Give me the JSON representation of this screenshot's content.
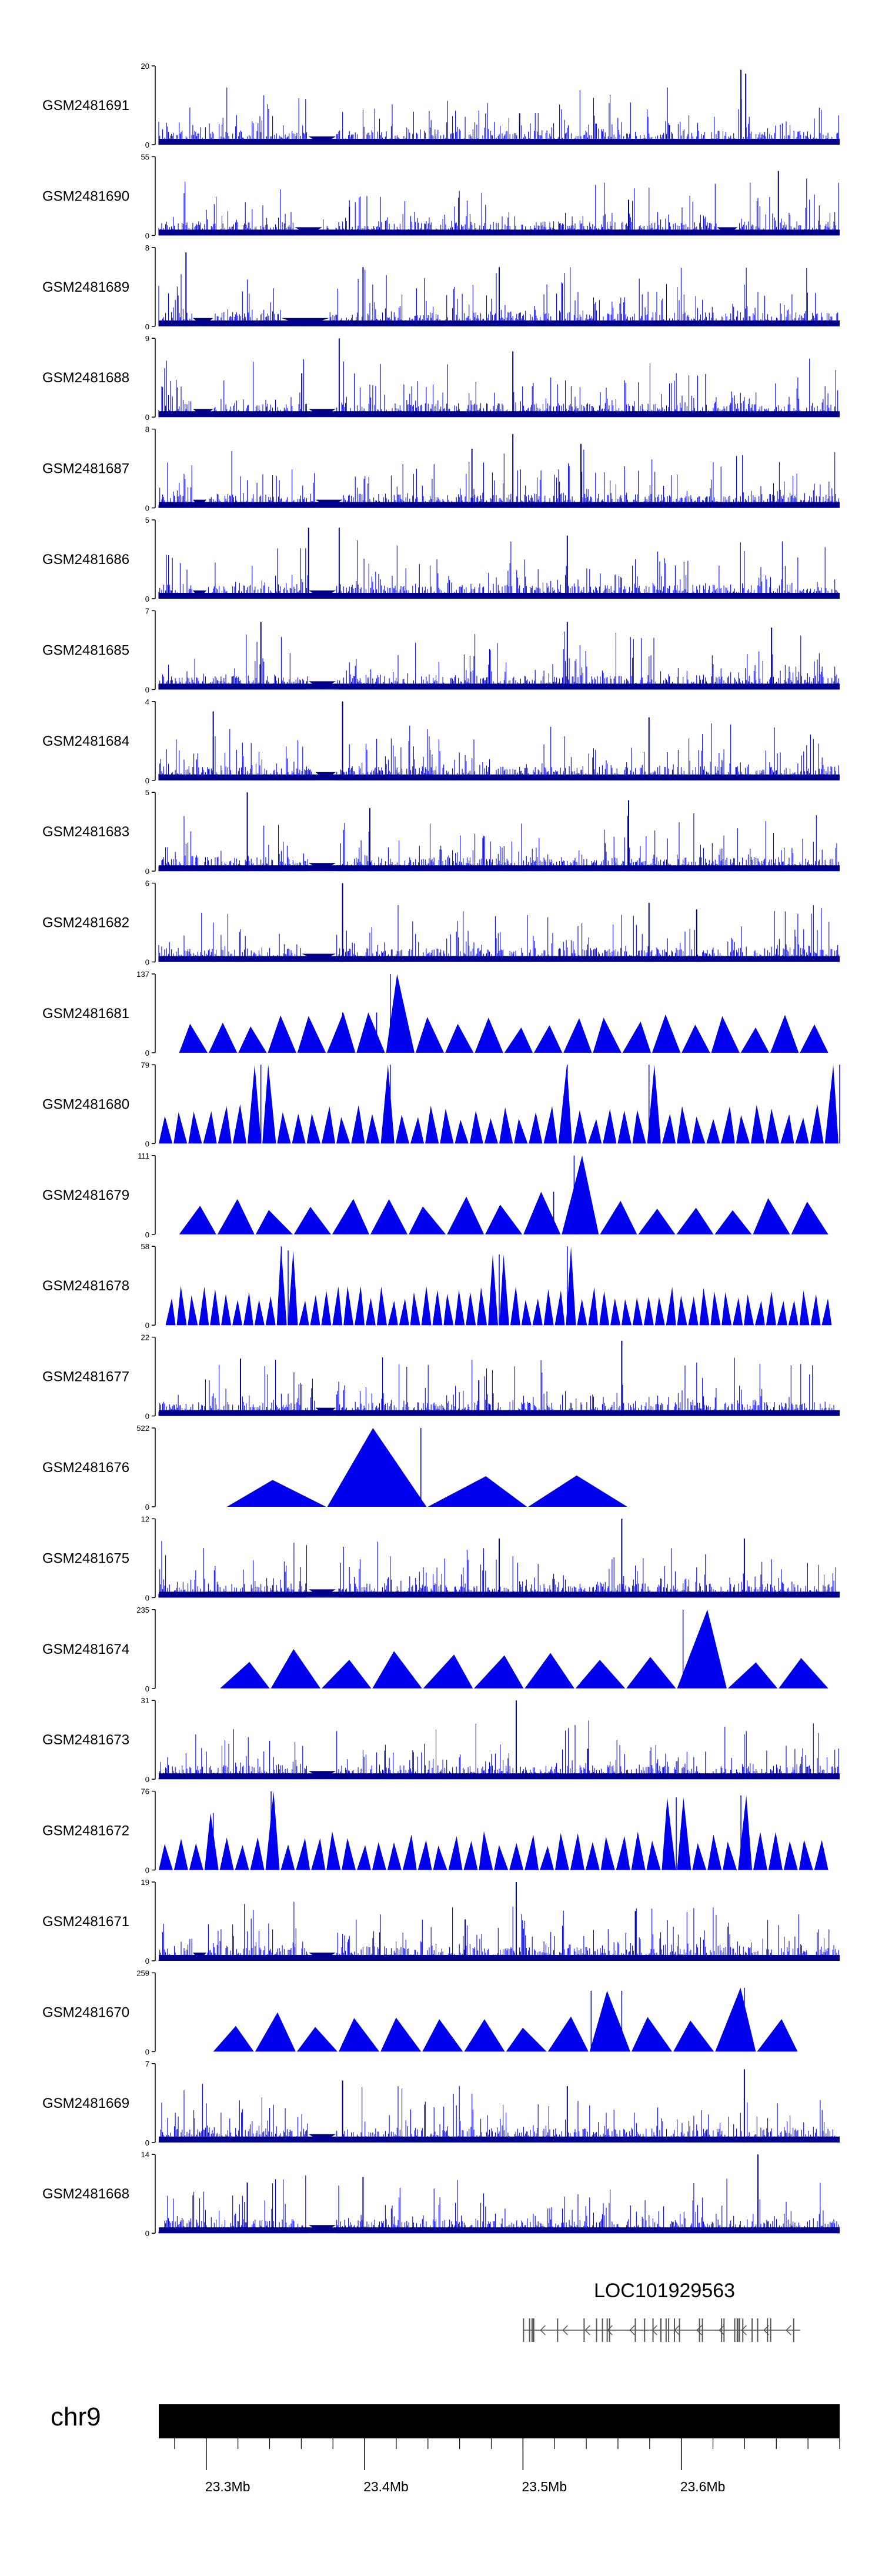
{
  "chart_data": {
    "type": "genome-tracks",
    "chromosome": "chr9",
    "x_range": [
      23.27,
      23.7
    ],
    "x_axis_ticks": [
      "23.3Mb",
      "23.4Mb",
      "23.5Mb",
      "23.6Mb"
    ],
    "x_axis_tick_values": [
      23.3,
      23.4,
      23.5,
      23.6
    ],
    "colors": {
      "signal": "#0000ee",
      "signal_dense": "#00008b",
      "axis": "#000000",
      "ideogram": "#000000",
      "gene": "#555555"
    },
    "tracks": [
      {
        "name": "GSM2481691",
        "ymax": 20,
        "style": "bars",
        "seed": 11,
        "gaps": [
          [
            0.22,
            0.26
          ]
        ],
        "peaks": [
          [
            0.855,
            19
          ],
          [
            0.862,
            18
          ],
          [
            0.53,
            8
          ],
          [
            0.75,
            5
          ]
        ]
      },
      {
        "name": "GSM2481690",
        "ymax": 55,
        "style": "bars",
        "seed": 12,
        "gaps": [
          [
            0.2,
            0.24
          ],
          [
            0.82,
            0.85
          ]
        ],
        "peaks": [
          [
            0.91,
            45
          ],
          [
            0.69,
            25
          ],
          [
            0.28,
            20
          ]
        ]
      },
      {
        "name": "GSM2481689",
        "ymax": 8,
        "style": "bars",
        "seed": 13,
        "gaps": [
          [
            0.05,
            0.08
          ],
          [
            0.18,
            0.25
          ]
        ],
        "peaks": [
          [
            0.04,
            7.5
          ],
          [
            0.5,
            6
          ],
          [
            0.3,
            6
          ]
        ]
      },
      {
        "name": "GSM2481688",
        "ymax": 9,
        "style": "bars",
        "seed": 14,
        "gaps": [
          [
            0.05,
            0.08
          ],
          [
            0.22,
            0.26
          ]
        ],
        "peaks": [
          [
            0.265,
            9
          ],
          [
            0.52,
            7.5
          ],
          [
            0.21,
            5
          ]
        ]
      },
      {
        "name": "GSM2481687",
        "ymax": 8,
        "style": "bars",
        "seed": 15,
        "gaps": [
          [
            0.05,
            0.07
          ],
          [
            0.23,
            0.27
          ]
        ],
        "peaks": [
          [
            0.52,
            7.5
          ],
          [
            0.62,
            6.5
          ],
          [
            0.46,
            6
          ]
        ]
      },
      {
        "name": "GSM2481686",
        "ymax": 5,
        "style": "bars",
        "seed": 16,
        "gaps": [
          [
            0.05,
            0.07
          ],
          [
            0.22,
            0.26
          ]
        ],
        "peaks": [
          [
            0.22,
            4.5
          ],
          [
            0.265,
            4.5
          ],
          [
            0.6,
            4
          ]
        ]
      },
      {
        "name": "GSM2481685",
        "ymax": 7,
        "style": "bars",
        "seed": 17,
        "gaps": [
          [
            0.22,
            0.26
          ]
        ],
        "peaks": [
          [
            0.15,
            6
          ],
          [
            0.6,
            6
          ],
          [
            0.9,
            5.5
          ]
        ]
      },
      {
        "name": "GSM2481684",
        "ymax": 4,
        "style": "bars",
        "seed": 18,
        "gaps": [
          [
            0.23,
            0.26
          ]
        ],
        "peaks": [
          [
            0.27,
            4
          ],
          [
            0.08,
            3.5
          ],
          [
            0.72,
            3.2
          ]
        ]
      },
      {
        "name": "GSM2481683",
        "ymax": 5,
        "style": "bars",
        "seed": 19,
        "gaps": [
          [
            0.22,
            0.26
          ]
        ],
        "peaks": [
          [
            0.13,
            5
          ],
          [
            0.69,
            4.5
          ],
          [
            0.31,
            4
          ]
        ]
      },
      {
        "name": "GSM2481682",
        "ymax": 6,
        "style": "bars",
        "seed": 20,
        "gaps": [
          [
            0.21,
            0.26
          ]
        ],
        "peaks": [
          [
            0.27,
            6
          ],
          [
            0.72,
            4.5
          ],
          [
            0.79,
            4
          ]
        ]
      },
      {
        "name": "GSM2481681",
        "ymax": 137,
        "style": "triangles",
        "seed": 21,
        "range": [
          0.03,
          0.985
        ],
        "count": 22,
        "peaks": [
          [
            0.34,
            137
          ],
          [
            0.35,
            80
          ],
          [
            0.32,
            70
          ],
          [
            0.27,
            70
          ]
        ]
      },
      {
        "name": "GSM2481680",
        "ymax": 79,
        "style": "triangles",
        "seed": 22,
        "range": [
          0.0,
          1.0
        ],
        "count": 46,
        "peaks": [
          [
            0.15,
            79
          ],
          [
            0.34,
            79
          ],
          [
            0.6,
            79
          ],
          [
            1.0,
            79
          ],
          [
            0.72,
            79
          ]
        ]
      },
      {
        "name": "GSM2481679",
        "ymax": 111,
        "style": "triangles",
        "seed": 23,
        "range": [
          0.03,
          0.985
        ],
        "count": 17,
        "peaks": [
          [
            0.61,
            111
          ],
          [
            0.58,
            60
          ]
        ]
      },
      {
        "name": "GSM2481678",
        "ymax": 58,
        "style": "triangles",
        "seed": 24,
        "range": [
          0.01,
          0.99
        ],
        "count": 60,
        "peaks": [
          [
            0.18,
            58
          ],
          [
            0.19,
            55
          ],
          [
            0.5,
            52
          ],
          [
            0.6,
            58
          ]
        ]
      },
      {
        "name": "GSM2481677",
        "ymax": 22,
        "style": "bars",
        "seed": 25,
        "gaps": [
          [
            0.23,
            0.26
          ]
        ],
        "peaks": [
          [
            0.68,
            21
          ],
          [
            0.12,
            16
          ],
          [
            0.47,
            10
          ]
        ]
      },
      {
        "name": "GSM2481676",
        "ymax": 522,
        "style": "triangles",
        "seed": 26,
        "range": [
          0.1,
          0.69
        ],
        "count": 4,
        "peaks": [
          [
            0.385,
            522
          ]
        ]
      },
      {
        "name": "GSM2481675",
        "ymax": 12,
        "style": "bars",
        "seed": 27,
        "gaps": [
          [
            0.22,
            0.26
          ]
        ],
        "peaks": [
          [
            0.68,
            12
          ],
          [
            0.5,
            9
          ],
          [
            0.86,
            9
          ]
        ]
      },
      {
        "name": "GSM2481674",
        "ymax": 235,
        "style": "triangles",
        "seed": 28,
        "range": [
          0.09,
          0.985
        ],
        "count": 12,
        "peaks": [
          [
            0.77,
            235
          ]
        ]
      },
      {
        "name": "GSM2481673",
        "ymax": 31,
        "style": "bars",
        "seed": 29,
        "gaps": [
          [
            0.22,
            0.26
          ]
        ],
        "peaks": [
          [
            0.525,
            31
          ],
          [
            0.63,
            12
          ]
        ]
      },
      {
        "name": "GSM2481672",
        "ymax": 76,
        "style": "triangles",
        "seed": 30,
        "range": [
          0.0,
          0.985
        ],
        "count": 44,
        "peaks": [
          [
            0.165,
            76
          ],
          [
            0.76,
            70
          ],
          [
            0.855,
            72
          ],
          [
            0.08,
            55
          ]
        ]
      },
      {
        "name": "GSM2481671",
        "ymax": 19,
        "style": "bars",
        "seed": 31,
        "gaps": [
          [
            0.05,
            0.07
          ],
          [
            0.22,
            0.26
          ]
        ],
        "peaks": [
          [
            0.525,
            19
          ],
          [
            0.7,
            12
          ],
          [
            0.45,
            10
          ]
        ]
      },
      {
        "name": "GSM2481670",
        "ymax": 259,
        "style": "triangles",
        "seed": 32,
        "range": [
          0.08,
          0.94
        ],
        "count": 14,
        "peaks": [
          [
            0.635,
            200
          ],
          [
            0.68,
            200
          ],
          [
            0.86,
            210
          ]
        ]
      },
      {
        "name": "GSM2481669",
        "ymax": 7,
        "style": "bars",
        "seed": 33,
        "gaps": [
          [
            0.22,
            0.26
          ]
        ],
        "peaks": [
          [
            0.86,
            6.5
          ],
          [
            0.27,
            5.5
          ],
          [
            0.6,
            5
          ]
        ]
      },
      {
        "name": "GSM2481668",
        "ymax": 14,
        "style": "bars",
        "seed": 34,
        "gaps": [
          [
            0.22,
            0.26
          ]
        ],
        "peaks": [
          [
            0.88,
            14
          ],
          [
            0.3,
            10
          ],
          [
            0.13,
            9
          ]
        ]
      }
    ],
    "gene": {
      "name": "LOC101929563",
      "start": 23.5,
      "end": 23.675,
      "strand": "-"
    }
  }
}
